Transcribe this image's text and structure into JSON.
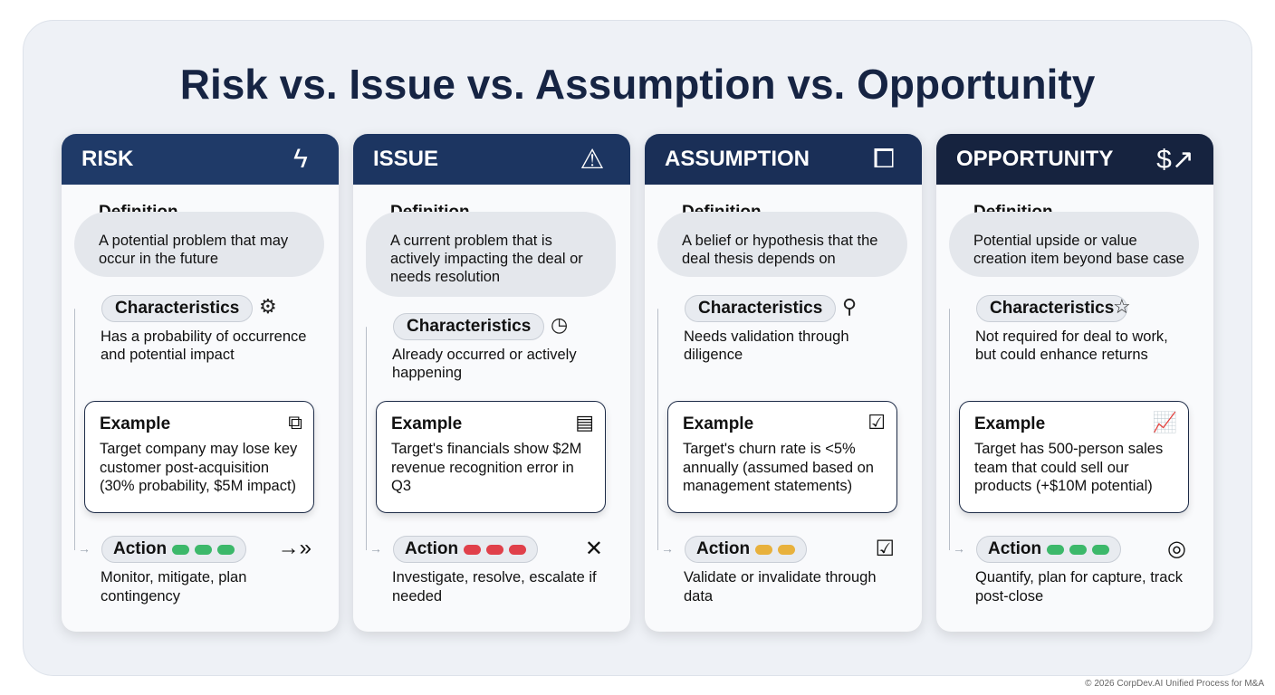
{
  "title": "Risk vs. Issue vs. Assumption vs. Opportunity",
  "footer": "© 2026 CorpDev.AI Unified Process for M&A",
  "labels": {
    "definition": "Definition",
    "characteristics": "Characteristics",
    "example": "Example",
    "action": "Action"
  },
  "cards": [
    {
      "name": "RISK",
      "header_color": "#1f3a68",
      "icon": "lightning-icon",
      "icon_glyph": "ϟ",
      "definition": "A potential problem that may occur in the future",
      "char_icon": "gears-icon",
      "char_glyph": "⚙",
      "characteristics": "Has a probability of occurrence and potential impact",
      "example_icon": "presentation-chart-icon",
      "example_glyph": "⧉",
      "example": "Target company may lose key customer post-acquisition (30% probability, $5M impact)",
      "action_dots": [
        "#3cb86a",
        "#3cb86a",
        "#3cb86a"
      ],
      "action_icon": "double-arrow-icon",
      "action_glyph": "→»",
      "action": "Monitor, mitigate, plan contingency"
    },
    {
      "name": "ISSUE",
      "header_color": "#1c3561",
      "icon": "warning-icon",
      "icon_glyph": "⚠",
      "definition": "A current problem that is actively impacting the deal or needs resolution",
      "char_icon": "clock-icon",
      "char_glyph": "◷",
      "characteristics": "Already occurred or actively happening",
      "example_icon": "document-icon",
      "example_glyph": "▤",
      "example": "Target's financials show $2M revenue recognition error in Q3",
      "action_dots": [
        "#e0404a",
        "#e0404a",
        "#e0404a"
      ],
      "action_icon": "tools-icon",
      "action_glyph": "✕",
      "action": "Investigate, resolve, escalate if needed"
    },
    {
      "name": "ASSUMPTION",
      "header_color": "#1a2f57",
      "icon": "puzzle-icon",
      "icon_glyph": "⧠",
      "definition": "A belief or hypothesis that the deal thesis depends on",
      "char_icon": "magnifier-icon",
      "char_glyph": "⚲",
      "characteristics": "Needs validation through diligence",
      "example_icon": "clipboard-checklist-icon",
      "example_glyph": "☑",
      "example": "Target's churn rate is <5% annually (assumed based on management statements)",
      "action_dots": [
        "#e8b13c",
        "#e8b13c"
      ],
      "action_icon": "checkbox-icon",
      "action_glyph": "☑",
      "action": "Validate or invalidate through data"
    },
    {
      "name": "OPPORTUNITY",
      "header_color": "#16233f",
      "icon": "dollar-growth-icon",
      "icon_glyph": "$↗",
      "definition": "Potential upside or value creation item beyond base case",
      "char_icon": "star-icon",
      "char_glyph": "☆",
      "characteristics": "Not required for deal to work, but could enhance returns",
      "example_icon": "bar-chart-growth-icon",
      "example_glyph": "📈",
      "example": "Target has 500-person sales team that could sell our products (+$10M potential)",
      "action_dots": [
        "#3cb86a",
        "#3cb86a",
        "#3cb86a"
      ],
      "action_icon": "target-icon",
      "action_glyph": "◎",
      "action": "Quantify, plan for capture, track post-close"
    }
  ]
}
